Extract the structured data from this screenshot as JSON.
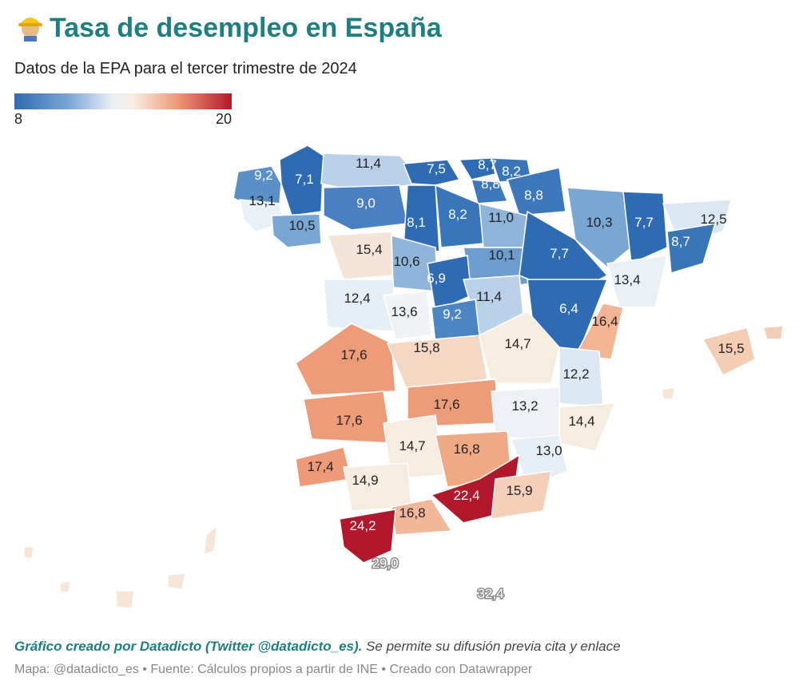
{
  "title": "Tasa de desempleo en España",
  "title_icon": "construction-worker-emoji",
  "subtitle": "Datos de la EPA para el tercer trimestre de 2024",
  "legend": {
    "min": "8",
    "max": "20",
    "colors": [
      "#2f6bb3",
      "#7aa6d4",
      "#e9f0f6",
      "#f7ece0",
      "#ee9a78",
      "#b2182b"
    ]
  },
  "regions": [
    {
      "value": "9,2"
    },
    {
      "value": "7,1"
    },
    {
      "value": "11,4"
    },
    {
      "value": "7,5"
    },
    {
      "value": "8,7"
    },
    {
      "value": "8,2"
    },
    {
      "value": "8,8"
    },
    {
      "value": "8,8"
    },
    {
      "value": "13,1"
    },
    {
      "value": "9,0"
    },
    {
      "value": "8,1"
    },
    {
      "value": "8,2"
    },
    {
      "value": "11,0"
    },
    {
      "value": "10,3"
    },
    {
      "value": "7,7"
    },
    {
      "value": "12,5"
    },
    {
      "value": "10,5"
    },
    {
      "value": "8,7"
    },
    {
      "value": "15,4"
    },
    {
      "value": "10,6"
    },
    {
      "value": "10,1"
    },
    {
      "value": "7,7"
    },
    {
      "value": "6,9"
    },
    {
      "value": "13,4"
    },
    {
      "value": "12,4"
    },
    {
      "value": "13,6"
    },
    {
      "value": "11,4"
    },
    {
      "value": "9,2"
    },
    {
      "value": "6,4"
    },
    {
      "value": "16,4"
    },
    {
      "value": "15,5"
    },
    {
      "value": "17,6"
    },
    {
      "value": "15,8"
    },
    {
      "value": "14,7"
    },
    {
      "value": "12,2"
    },
    {
      "value": "17,6"
    },
    {
      "value": "17,6"
    },
    {
      "value": "13,2"
    },
    {
      "value": "14,4"
    },
    {
      "value": "14,7"
    },
    {
      "value": "16,8"
    },
    {
      "value": "13,0"
    },
    {
      "value": "17,4"
    },
    {
      "value": "14,9"
    },
    {
      "value": "22,4"
    },
    {
      "value": "15,9"
    },
    {
      "value": "16,8"
    },
    {
      "value": "24,2"
    },
    {
      "value": "29,0"
    },
    {
      "value": "32,4"
    }
  ],
  "footer": {
    "credit": "Gráfico creado por Datadicto (Twitter @datadicto_es).",
    "note": " Se permite su difusión previa cita y enlace",
    "source": "Mapa: @datadicto_es • Fuente: Cálculos propios a partir de INE • Creado con Datawrapper"
  }
}
